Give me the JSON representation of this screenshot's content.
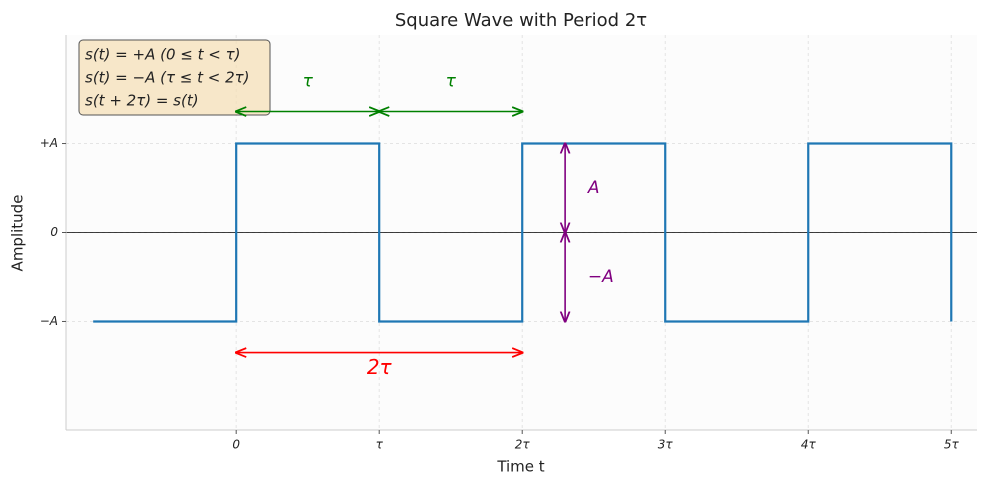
{
  "chart_data": {
    "type": "line",
    "title": "Square Wave with Period 2τ",
    "xlabel": "Time t",
    "ylabel": "Amplitude",
    "x": [
      -1,
      0,
      0,
      1,
      1,
      2,
      2,
      3,
      3,
      4,
      4,
      5,
      5
    ],
    "series": [
      {
        "name": "s(t)",
        "color": "#1f77b4",
        "values": [
          -1,
          -1,
          1,
          1,
          -1,
          -1,
          1,
          1,
          -1,
          -1,
          1,
          1,
          -1
        ]
      }
    ],
    "xlim": [
      -1.19,
      5.18
    ],
    "ylim": [
      -2.22,
      2.22
    ],
    "xticks": [
      0,
      {
        "value": 1,
        "label": "τ"
      },
      {
        "value": 2,
        "label": "2τ"
      },
      {
        "value": 3,
        "label": "3τ"
      },
      {
        "value": 4,
        "label": "4τ"
      },
      {
        "value": 5,
        "label": "5τ"
      }
    ],
    "yticks": [
      {
        "value": -1,
        "label": "−A"
      },
      0,
      {
        "value": 1,
        "label": "+A"
      }
    ],
    "grid": true,
    "legend_box": [
      "s(t) = +A    (0 ≤ t < τ)",
      "s(t) = −A    (τ ≤ t < 2τ)",
      "s(t + 2τ) = s(t)"
    ],
    "annotations": [
      {
        "text": "τ",
        "color": "#008000",
        "from": [
          0,
          1.36
        ],
        "to": [
          1,
          1.36
        ],
        "label_at": [
          0.5,
          1.7
        ]
      },
      {
        "text": "τ",
        "color": "#008000",
        "from": [
          1,
          1.36
        ],
        "to": [
          2,
          1.36
        ],
        "label_at": [
          1.5,
          1.7
        ]
      },
      {
        "text": "2τ",
        "color": "#ff0000",
        "from": [
          0,
          -1.35
        ],
        "to": [
          2,
          -1.35
        ],
        "label_at": [
          1,
          -1.53
        ]
      },
      {
        "text": "A",
        "color": "#800080",
        "from": [
          2.3,
          0
        ],
        "to": [
          2.3,
          1
        ],
        "label_at": [
          2.5,
          0.5
        ]
      },
      {
        "text": "−A",
        "color": "#800080",
        "from": [
          2.3,
          0
        ],
        "to": [
          2.3,
          -1
        ],
        "label_at": [
          2.55,
          -0.5
        ]
      }
    ]
  }
}
